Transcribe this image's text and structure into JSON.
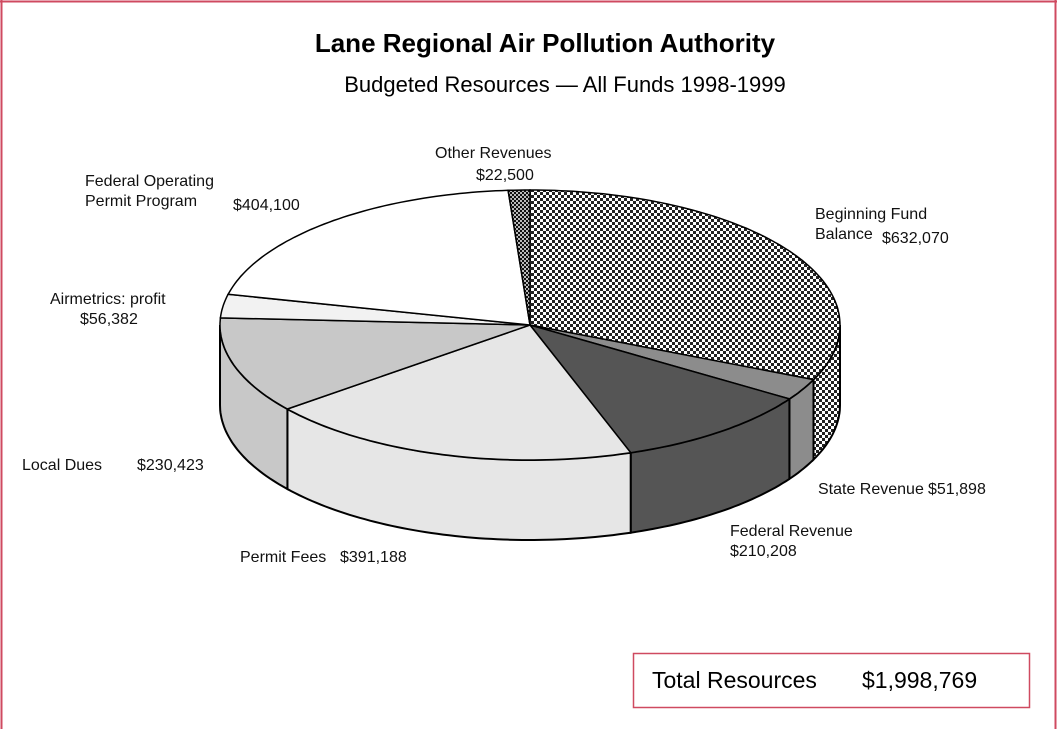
{
  "chart_data": {
    "type": "pie3d",
    "title": "Lane Regional Air Pollution Authority",
    "subtitle": "Budgeted Resources — All Funds  1998-1999",
    "categories": [
      "Beginning Fund Balance",
      "State Revenue",
      "Federal Revenue",
      "Permit Fees",
      "Local Dues",
      "Airmetrics: profit",
      "Federal Operating Permit Program",
      "Other Revenues"
    ],
    "values": [
      632070,
      51898,
      210208,
      391188,
      230423,
      56382,
      404100,
      22500
    ],
    "value_labels": [
      "$632,070",
      "$51,898",
      "$210,208",
      "$391,188",
      "$230,423",
      "$56,382",
      "$404,100",
      "$22,500"
    ],
    "colors": [
      "url(#check-light)",
      "#8c8c8c",
      "#555555",
      "#e6e6e6",
      "#c8c8c8",
      "#f2f2f2",
      "#ffffff",
      "url(#check-dark)"
    ],
    "total": {
      "label": "Total Resources",
      "value": 1998769,
      "value_label": "$1,998,769"
    }
  }
}
